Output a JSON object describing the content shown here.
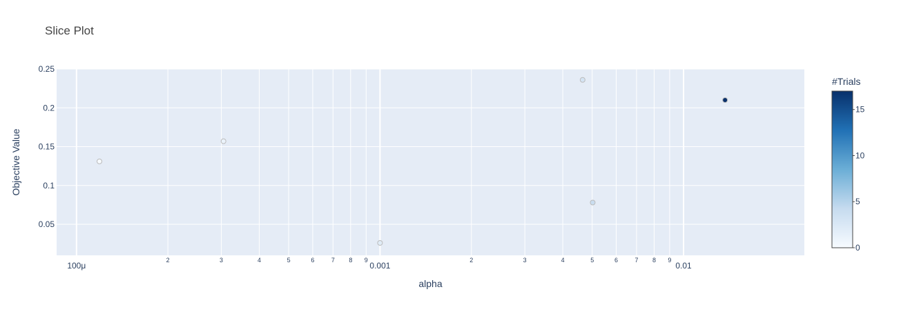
{
  "chart_data": {
    "type": "scatter",
    "title": "Slice Plot",
    "xlabel": "alpha",
    "ylabel": "Objective Value",
    "x_scale": "log",
    "xlim": [
      8.6e-05,
      0.025
    ],
    "ylim": [
      0.01,
      0.25
    ],
    "x_major_ticks": [
      {
        "value": 0.0001,
        "label": "100μ"
      },
      {
        "value": 0.001,
        "label": "0.001"
      },
      {
        "value": 0.01,
        "label": "0.01"
      }
    ],
    "x_minor_ticks": [
      {
        "value": 0.0002,
        "label": "2"
      },
      {
        "value": 0.0003,
        "label": "3"
      },
      {
        "value": 0.0004,
        "label": "4"
      },
      {
        "value": 0.0005,
        "label": "5"
      },
      {
        "value": 0.0006,
        "label": "6"
      },
      {
        "value": 0.0007,
        "label": "7"
      },
      {
        "value": 0.0008,
        "label": "8"
      },
      {
        "value": 0.0009,
        "label": "9"
      },
      {
        "value": 0.002,
        "label": "2"
      },
      {
        "value": 0.003,
        "label": "3"
      },
      {
        "value": 0.004,
        "label": "4"
      },
      {
        "value": 0.005,
        "label": "5"
      },
      {
        "value": 0.006,
        "label": "6"
      },
      {
        "value": 0.007,
        "label": "7"
      },
      {
        "value": 0.008,
        "label": "8"
      },
      {
        "value": 0.009,
        "label": "9"
      }
    ],
    "y_ticks": [
      {
        "value": 0.05,
        "label": "0.05"
      },
      {
        "value": 0.1,
        "label": "0.1"
      },
      {
        "value": 0.15,
        "label": "0.15"
      },
      {
        "value": 0.2,
        "label": "0.2"
      },
      {
        "value": 0.25,
        "label": "0.25"
      }
    ],
    "points": [
      {
        "x": 0.000119,
        "y": 0.131,
        "trial": 0
      },
      {
        "x": 0.000305,
        "y": 0.157,
        "trial": 1
      },
      {
        "x": 0.001,
        "y": 0.026,
        "trial": 2
      },
      {
        "x": 0.00465,
        "y": 0.236,
        "trial": 3
      },
      {
        "x": 0.00502,
        "y": 0.078,
        "trial": 4
      },
      {
        "x": 0.0137,
        "y": 0.21,
        "trial": 17
      }
    ],
    "colorbar": {
      "title": "#Trials",
      "min": 0,
      "max": 17,
      "ticks": [
        {
          "value": 0,
          "label": "0"
        },
        {
          "value": 5,
          "label": "5"
        },
        {
          "value": 10,
          "label": "10"
        },
        {
          "value": 15,
          "label": "15"
        }
      ],
      "colorscale": [
        "#f7fbff",
        "#c6dbef",
        "#6baed6",
        "#2171b5",
        "#08306b"
      ]
    },
    "grid": true,
    "plot_background": "#e5ecf6",
    "marker_line_color": "#bbbbbb",
    "axis_text_color": "#2a3f5f",
    "title_color": "#444444"
  }
}
